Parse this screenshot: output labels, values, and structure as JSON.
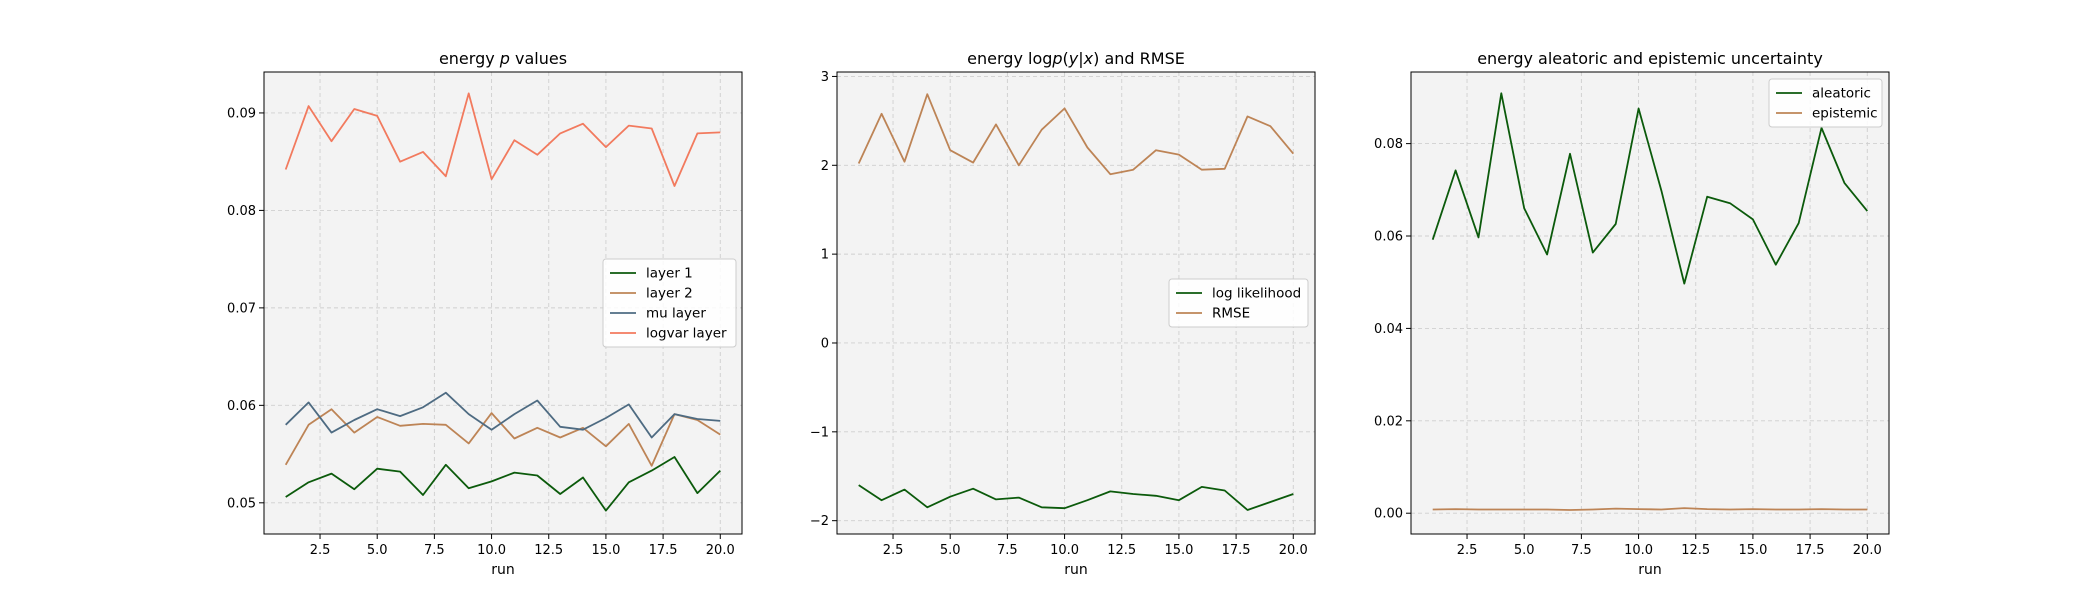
{
  "chart_data": [
    {
      "type": "line",
      "title_parts": [
        "energy ",
        "p",
        " values"
      ],
      "xlabel": "run",
      "ylabel": "",
      "xlim": [
        0.05,
        20.95
      ],
      "ylim": [
        0.0468,
        0.0942
      ],
      "xticks": [
        2.5,
        5.0,
        7.5,
        10.0,
        12.5,
        15.0,
        17.5,
        20.0
      ],
      "xtick_labels": [
        "2.5",
        "5.0",
        "7.5",
        "10.0",
        "12.5",
        "15.0",
        "17.5",
        "20.0"
      ],
      "yticks": [
        0.05,
        0.06,
        0.07,
        0.08,
        0.09
      ],
      "ytick_labels": [
        "0.05",
        "0.06",
        "0.07",
        "0.08",
        "0.09"
      ],
      "grid": true,
      "legend": "center-right",
      "x": [
        1,
        2,
        3,
        4,
        5,
        6,
        7,
        8,
        9,
        10,
        11,
        12,
        13,
        14,
        15,
        16,
        17,
        18,
        19,
        20
      ],
      "series": [
        {
          "name": "layer 1",
          "color": "#0b5a0b",
          "values": [
            0.0506,
            0.0521,
            0.053,
            0.0514,
            0.0535,
            0.0532,
            0.0508,
            0.0539,
            0.0515,
            0.0522,
            0.0531,
            0.0528,
            0.0509,
            0.0526,
            0.0492,
            0.0521,
            0.0533,
            0.0547,
            0.051,
            0.0533
          ]
        },
        {
          "name": "layer 2",
          "color": "#bd8456",
          "values": [
            0.0539,
            0.058,
            0.0596,
            0.0572,
            0.0588,
            0.0579,
            0.0581,
            0.058,
            0.0561,
            0.0592,
            0.0566,
            0.0577,
            0.0567,
            0.0577,
            0.0558,
            0.0581,
            0.0538,
            0.0591,
            0.0585,
            0.057
          ]
        },
        {
          "name": "mu layer",
          "color": "#4e6b82",
          "values": [
            0.058,
            0.0603,
            0.0572,
            0.0585,
            0.0596,
            0.0589,
            0.0598,
            0.0613,
            0.0591,
            0.0575,
            0.0591,
            0.0605,
            0.0578,
            0.0575,
            0.0587,
            0.0601,
            0.0567,
            0.0591,
            0.0586,
            0.0584
          ]
        },
        {
          "name": "logvar layer",
          "color": "#f27a5e",
          "values": [
            0.0842,
            0.0907,
            0.0871,
            0.0904,
            0.0897,
            0.085,
            0.086,
            0.0835,
            0.092,
            0.0832,
            0.0872,
            0.0857,
            0.0879,
            0.0889,
            0.0865,
            0.0887,
            0.0884,
            0.0825,
            0.0879,
            0.088
          ]
        }
      ]
    },
    {
      "type": "line",
      "title_parts": [
        "energy log",
        "p",
        "(",
        "y",
        "|",
        "x",
        ") and RMSE"
      ],
      "xlabel": "run",
      "ylabel": "",
      "xlim": [
        0.05,
        20.95
      ],
      "ylim": [
        -2.15,
        3.05
      ],
      "xticks": [
        2.5,
        5.0,
        7.5,
        10.0,
        12.5,
        15.0,
        17.5,
        20.0
      ],
      "xtick_labels": [
        "2.5",
        "5.0",
        "7.5",
        "10.0",
        "12.5",
        "15.0",
        "17.5",
        "20.0"
      ],
      "yticks": [
        -2,
        -1,
        0,
        1,
        2,
        3
      ],
      "ytick_labels": [
        "−2",
        "−1",
        "0",
        "1",
        "2",
        "3"
      ],
      "grid": true,
      "legend": "center-right",
      "x": [
        1,
        2,
        3,
        4,
        5,
        6,
        7,
        8,
        9,
        10,
        11,
        12,
        13,
        14,
        15,
        16,
        17,
        18,
        19,
        20
      ],
      "series": [
        {
          "name": "log likelihood",
          "color": "#0b5a0b",
          "values": [
            -1.6,
            -1.77,
            -1.65,
            -1.85,
            -1.73,
            -1.64,
            -1.76,
            -1.74,
            -1.85,
            -1.86,
            -1.77,
            -1.67,
            -1.7,
            -1.72,
            -1.77,
            -1.62,
            -1.66,
            -1.88,
            -1.79,
            -1.7
          ]
        },
        {
          "name": "RMSE",
          "color": "#bd8456",
          "values": [
            2.02,
            2.58,
            2.04,
            2.8,
            2.17,
            2.03,
            2.46,
            2.0,
            2.4,
            2.64,
            2.2,
            1.9,
            1.95,
            2.17,
            2.12,
            1.95,
            1.96,
            2.55,
            2.44,
            2.13
          ]
        }
      ]
    },
    {
      "type": "line",
      "title_parts": [
        "energy aleatoric and epistemic uncertainty"
      ],
      "xlabel": "run",
      "ylabel": "",
      "xlim": [
        0.05,
        20.95
      ],
      "ylim": [
        -0.0045,
        0.0955
      ],
      "xticks": [
        2.5,
        5.0,
        7.5,
        10.0,
        12.5,
        15.0,
        17.5,
        20.0
      ],
      "xtick_labels": [
        "2.5",
        "5.0",
        "7.5",
        "10.0",
        "12.5",
        "15.0",
        "17.5",
        "20.0"
      ],
      "yticks": [
        0.0,
        0.02,
        0.04,
        0.06,
        0.08
      ],
      "ytick_labels": [
        "0.00",
        "0.02",
        "0.04",
        "0.06",
        "0.08"
      ],
      "grid": true,
      "legend": "top-right",
      "x": [
        1,
        2,
        3,
        4,
        5,
        6,
        7,
        8,
        9,
        10,
        11,
        12,
        13,
        14,
        15,
        16,
        17,
        18,
        19,
        20
      ],
      "series": [
        {
          "name": "aleatoric",
          "color": "#0b5a0b",
          "values": [
            0.0592,
            0.0742,
            0.0597,
            0.0909,
            0.066,
            0.056,
            0.0778,
            0.0564,
            0.0626,
            0.0876,
            0.0698,
            0.0497,
            0.0685,
            0.0671,
            0.0636,
            0.0538,
            0.0628,
            0.0834,
            0.0715,
            0.0654
          ]
        },
        {
          "name": "epistemic",
          "color": "#bd8456",
          "values": [
            0.0008,
            0.0009,
            0.0008,
            0.0008,
            0.0008,
            0.0008,
            0.0007,
            0.0008,
            0.001,
            0.0009,
            0.0008,
            0.0011,
            0.0009,
            0.0008,
            0.0009,
            0.0008,
            0.0008,
            0.0009,
            0.0008,
            0.0008
          ]
        }
      ]
    }
  ]
}
